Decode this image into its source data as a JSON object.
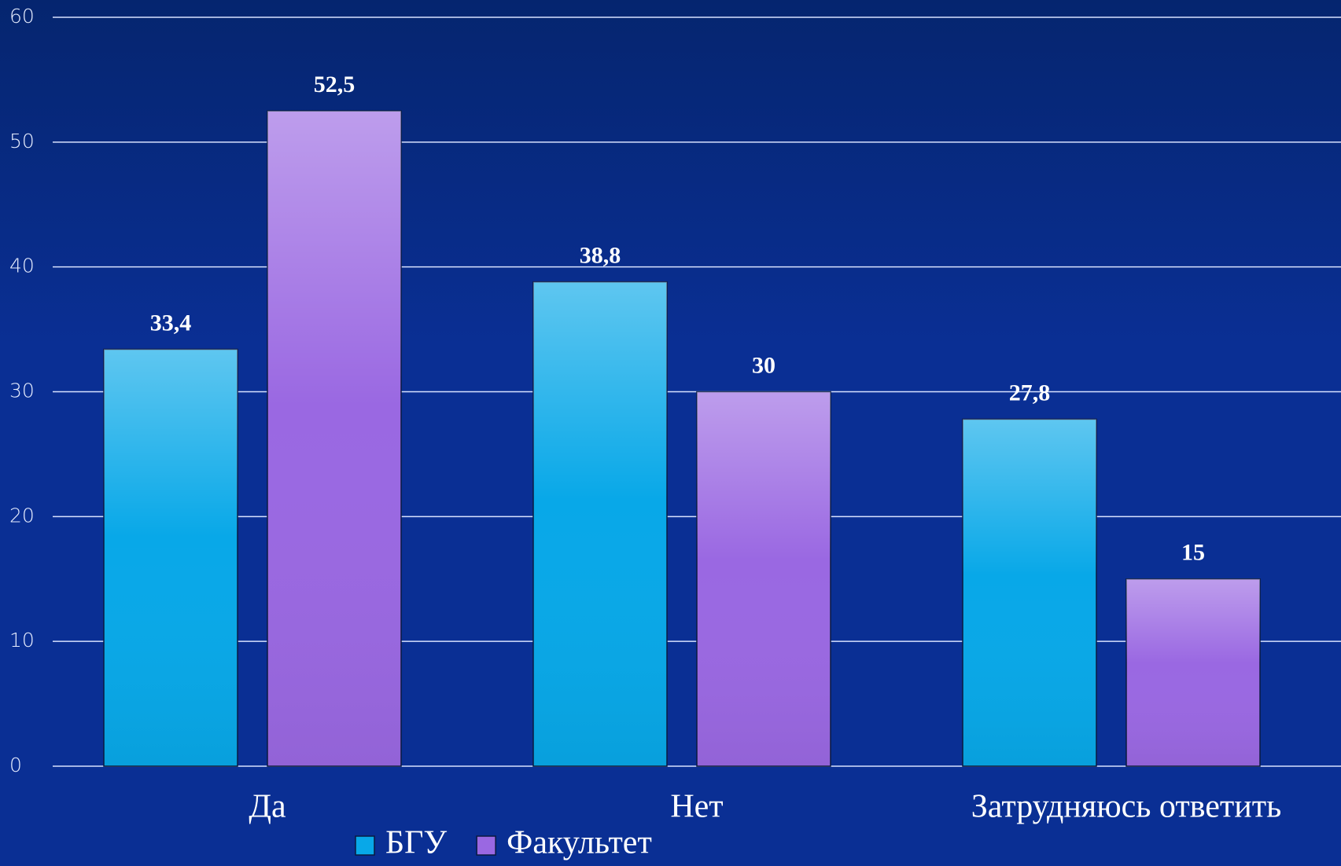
{
  "chart_data": {
    "type": "bar",
    "categories": [
      "Да",
      "Нет",
      "Затрудняюсь ответить"
    ],
    "series": [
      {
        "name": "БГУ",
        "color": "#08a8e8",
        "values": [
          33.4,
          38.8,
          27.8
        ],
        "value_labels": [
          "33,4",
          "38,8",
          "27,8"
        ]
      },
      {
        "name": "Факультет",
        "color": "#9a68e2",
        "values": [
          52.5,
          30,
          15
        ],
        "value_labels": [
          "52,5",
          "30",
          "15"
        ]
      }
    ],
    "ylim": [
      0,
      60
    ],
    "yticks": [
      0,
      10,
      20,
      30,
      40,
      50,
      60
    ],
    "grid": true,
    "legend": "bottom"
  }
}
